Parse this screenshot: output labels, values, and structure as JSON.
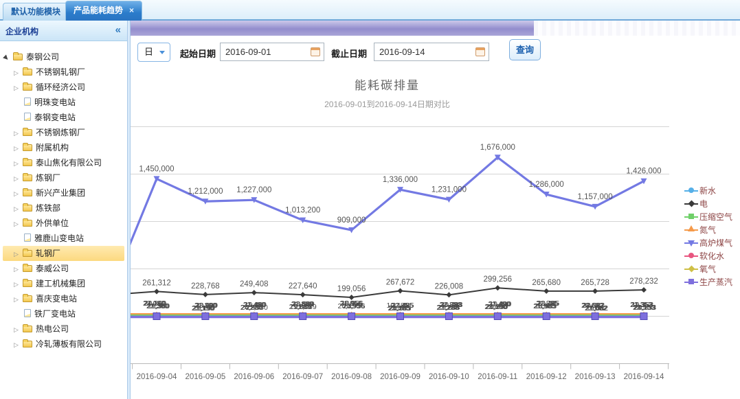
{
  "tabs": {
    "items": [
      {
        "label": "默认功能模块",
        "active": false
      },
      {
        "label": "产品能耗趋势",
        "active": true,
        "close_icon": "×"
      }
    ]
  },
  "sidebar": {
    "title": "企业机构",
    "collapse_icon": "«",
    "tree": [
      {
        "label": "泰钢公司",
        "icon": "folder",
        "arrow": "expanded",
        "level": 0,
        "selected": false
      },
      {
        "label": "不锈钢轧钢厂",
        "icon": "folder",
        "arrow": "collapsed",
        "level": 1,
        "selected": false
      },
      {
        "label": "循环经济公司",
        "icon": "folder",
        "arrow": "collapsed",
        "level": 1,
        "selected": false
      },
      {
        "label": "明珠变电站",
        "icon": "file",
        "arrow": "none",
        "level": 1,
        "selected": false
      },
      {
        "label": "泰钢变电站",
        "icon": "file",
        "arrow": "none",
        "level": 1,
        "selected": false
      },
      {
        "label": "不锈钢炼钢厂",
        "icon": "folder",
        "arrow": "collapsed",
        "level": 1,
        "selected": false
      },
      {
        "label": "附属机构",
        "icon": "folder",
        "arrow": "collapsed",
        "level": 1,
        "selected": false
      },
      {
        "label": "泰山焦化有限公司",
        "icon": "folder",
        "arrow": "collapsed",
        "level": 1,
        "selected": false
      },
      {
        "label": "炼钢厂",
        "icon": "folder",
        "arrow": "collapsed",
        "level": 1,
        "selected": false
      },
      {
        "label": "新兴产业集团",
        "icon": "folder",
        "arrow": "collapsed",
        "level": 1,
        "selected": false
      },
      {
        "label": "炼铁部",
        "icon": "folder",
        "arrow": "collapsed",
        "level": 1,
        "selected": false
      },
      {
        "label": "外供单位",
        "icon": "folder",
        "arrow": "collapsed",
        "level": 1,
        "selected": false
      },
      {
        "label": "雅鹿山变电站",
        "icon": "file",
        "arrow": "none",
        "level": 1,
        "selected": false
      },
      {
        "label": "轧钢厂",
        "icon": "folder",
        "arrow": "collapsed",
        "level": 1,
        "selected": true
      },
      {
        "label": "泰威公司",
        "icon": "folder",
        "arrow": "collapsed",
        "level": 1,
        "selected": false
      },
      {
        "label": "建工机械集团",
        "icon": "folder",
        "arrow": "collapsed",
        "level": 1,
        "selected": false
      },
      {
        "label": "喜庆变电站",
        "icon": "folder",
        "arrow": "collapsed",
        "level": 1,
        "selected": false
      },
      {
        "label": "铁厂变电站",
        "icon": "file",
        "arrow": "none",
        "level": 1,
        "selected": false
      },
      {
        "label": "热电公司",
        "icon": "folder",
        "arrow": "collapsed",
        "level": 1,
        "selected": false
      },
      {
        "label": "冷轧薄板有限公司",
        "icon": "folder",
        "arrow": "collapsed",
        "level": 1,
        "selected": false
      }
    ]
  },
  "toolbar": {
    "granularity_value": "日",
    "start_label": "起始日期",
    "start_value": "2016-09-01",
    "end_label": "截止日期",
    "end_value": "2016-09-14",
    "search_label": "查询"
  },
  "chart_data": {
    "type": "line",
    "title": "能耗碳排量",
    "subtitle": "2016-09-01到2016-09-14日期对比",
    "categories": [
      "2016-09-04",
      "2016-09-05",
      "2016-09-06",
      "2016-09-07",
      "2016-09-08",
      "2016-09-09",
      "2016-09-10",
      "2016-09-11",
      "2016-09-12",
      "2016-09-13",
      "2016-09-14"
    ],
    "series": [
      {
        "name": "新水",
        "color": "#56b0e8",
        "marker": "circle",
        "size": "small",
        "labels_visible": false,
        "values": [
          23080,
          21290,
          22980,
          21889,
          20956,
          23485,
          22380,
          23490,
          21885,
          20682,
          23553
        ]
      },
      {
        "name": "电",
        "color": "#3a3a3a",
        "marker": "diamond",
        "size": "big",
        "labels_visible": true,
        "values": [
          261312,
          228768,
          249408,
          227640,
          199056,
          267672,
          226008,
          299256,
          265680,
          265728,
          278232
        ]
      },
      {
        "name": "压缩空气",
        "color": "#6fd069",
        "marker": "square",
        "size": "small",
        "labels_visible": false,
        "values": [
          22360,
          22190,
          22480,
          22089,
          21956,
          22485,
          22288,
          22490,
          21985,
          22082,
          22353
        ]
      },
      {
        "name": "氮气",
        "color": "#f59a4a",
        "marker": "triangle",
        "size": "small",
        "labels_visible": false,
        "values": [
          24160,
          23990,
          24280,
          23889,
          23756,
          24285,
          24088,
          24290,
          23785,
          23882,
          24153
        ]
      },
      {
        "name": "高炉煤气",
        "color": "#7379e3",
        "marker": "triangle-down",
        "size": "big",
        "labels_visible": true,
        "values": [
          1450000,
          1212000,
          1227000,
          1013200,
          909000,
          1336000,
          1231000,
          1676000,
          1286000,
          1157000,
          1426000
        ]
      },
      {
        "name": "软化水",
        "color": "#e85680",
        "marker": "circle",
        "size": "small",
        "labels_visible": false,
        "values": [
          21360,
          21190,
          21480,
          21089,
          20956,
          21485,
          21288,
          21490,
          20985,
          21082,
          21353
        ]
      },
      {
        "name": "氧气",
        "color": "#cfc046",
        "marker": "diamond",
        "size": "small",
        "labels_visible": false,
        "values": [
          20860,
          20690,
          20980,
          20589,
          20456,
          20985,
          20788,
          20990,
          20485,
          20582,
          20853
        ]
      },
      {
        "name": "生产蒸汽",
        "color": "#7e6fdd",
        "marker": "square",
        "size": "small",
        "labels_visible": false,
        "values": [
          19360,
          19190,
          19480,
          19089,
          18956,
          19485,
          19288,
          19490,
          18985,
          19082,
          19353
        ]
      }
    ],
    "legend_position": "right",
    "grid": true,
    "ylim": [
      -500000,
      2000000
    ],
    "y_gridline_interval": 500000,
    "y_axis_labels_hidden": true,
    "small_series_labels_overlap": true
  }
}
